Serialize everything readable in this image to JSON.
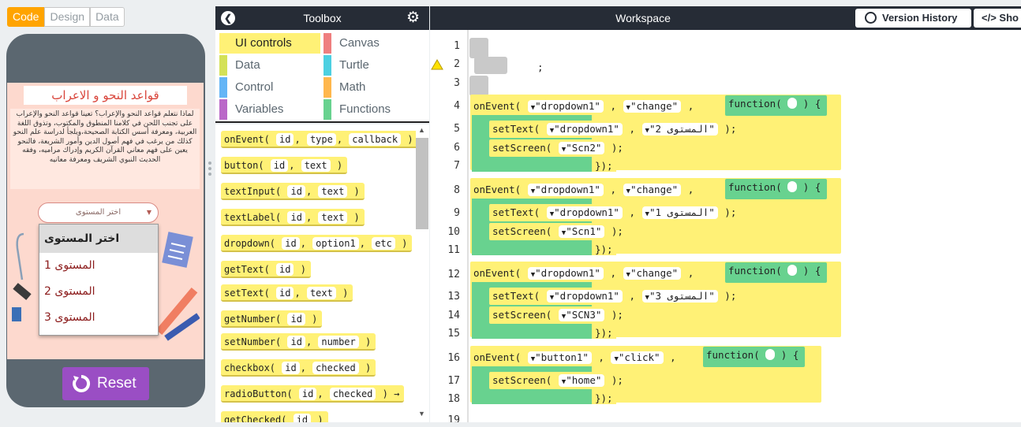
{
  "mode_tabs": [
    {
      "label": "Code",
      "active": true
    },
    {
      "label": "Design",
      "active": false
    },
    {
      "label": "Data",
      "active": false
    }
  ],
  "app": {
    "title": "قواعد النحو و الاعراب",
    "body": "لماذا نتعلم قواعد النحو والإعراب؟ تعينا قواعد النحو والإعراب على تجنب اللحن في كلامنا المنطوق والمكتوب، وتذوق اللغة العربية، ومعرفة أسس الكتابة الصحيحة،ويلجأ لدراسة علم النحو كذلك من يرغب في فهم أصول الدين وأمور الشريعة، فالنحو يعين على فهم معاني القرآن الكريم وإدراك مراميه، وفقه الحديث النبوي الشريف ومعرفة معانيه",
    "dropdown_value": "اختر المستوى",
    "dropdown_options": [
      "اختر المستوى",
      "المستوى 1",
      "المستوى 2",
      "المستوى 3"
    ],
    "reset_label": "Reset"
  },
  "toolbox": {
    "title": "Toolbox",
    "categories": [
      {
        "label": "UI controls",
        "color": "#fff176",
        "active": true
      },
      {
        "label": "Canvas",
        "color": "#ef7f7f",
        "active": false
      },
      {
        "label": "Data",
        "color": "#d4e157",
        "active": false
      },
      {
        "label": "Turtle",
        "color": "#4dd0e1",
        "active": false
      },
      {
        "label": "Control",
        "color": "#64b5f6",
        "active": false
      },
      {
        "label": "Math",
        "color": "#ffb74d",
        "active": false
      },
      {
        "label": "Variables",
        "color": "#ba68c8",
        "active": false
      },
      {
        "label": "Functions",
        "color": "#68d28f",
        "active": false
      }
    ],
    "blocks": [
      {
        "name": "onEvent(",
        "args": [
          "id",
          "type",
          "callback"
        ],
        "end": ")"
      },
      {
        "name": "button(",
        "args": [
          "id",
          "text"
        ],
        "end": ")"
      },
      {
        "name": "textInput(",
        "args": [
          "id",
          "text"
        ],
        "end": ")"
      },
      {
        "name": "textLabel(",
        "args": [
          "id",
          "text"
        ],
        "end": ")"
      },
      {
        "name": "dropdown(",
        "args": [
          "id",
          "option1",
          "etc"
        ],
        "end": ")"
      },
      {
        "name": "getText(",
        "args": [
          "id"
        ],
        "end": ")"
      },
      {
        "name": "setText(",
        "args": [
          "id",
          "text"
        ],
        "end": ")"
      },
      {
        "name": "getNumber(",
        "args": [
          "id"
        ],
        "end": ")"
      },
      {
        "name": "setNumber(",
        "args": [
          "id",
          "number"
        ],
        "end": ")"
      },
      {
        "name": "checkbox(",
        "args": [
          "id",
          "checked"
        ],
        "end": ")"
      },
      {
        "name": "radioButton(",
        "args": [
          "id",
          "checked"
        ],
        "end": ") →"
      },
      {
        "name": "getChecked(",
        "args": [
          "id"
        ],
        "end": ")"
      }
    ]
  },
  "workspace": {
    "title": "Workspace",
    "version_history": "Version History",
    "show_text": "Sho",
    "line_numbers": [
      "1",
      "2",
      "3",
      "4",
      "5",
      "6",
      "7",
      "8",
      "9",
      "10",
      "11",
      "12",
      "13",
      "14",
      "15",
      "16",
      "17",
      "18",
      "19"
    ],
    "line2_text": ";",
    "events": [
      {
        "target": "\"dropdown1\"",
        "event": "\"change\"",
        "set_id": "\"dropdown1\"",
        "set_text": "\"المستوى 2\"",
        "screen": "\"Scn2\"",
        "fn": "function(",
        "open": ") {",
        "close": "});"
      },
      {
        "target": "\"dropdown1\"",
        "event": "\"change\"",
        "set_id": "\"dropdown1\"",
        "set_text": "\"المستوى 1\"",
        "screen": "\"Scn1\"",
        "fn": "function(",
        "open": ") {",
        "close": "});"
      },
      {
        "target": "\"dropdown1\"",
        "event": "\"change\"",
        "set_id": "\"dropdown1\"",
        "set_text": "\"المستوى 3\"",
        "screen": "\"SCN3\"",
        "fn": "function(",
        "open": ") {",
        "close": "});"
      },
      {
        "target": "\"button1\"",
        "event": "\"click\"",
        "screen": "\"home\"",
        "fn": "function(",
        "open": ") {",
        "close": "});"
      }
    ],
    "kw": {
      "onEvent": "onEvent(",
      "setText": "setText(",
      "setScreen": "setScreen(",
      "comma": ",",
      "end": ");"
    }
  }
}
